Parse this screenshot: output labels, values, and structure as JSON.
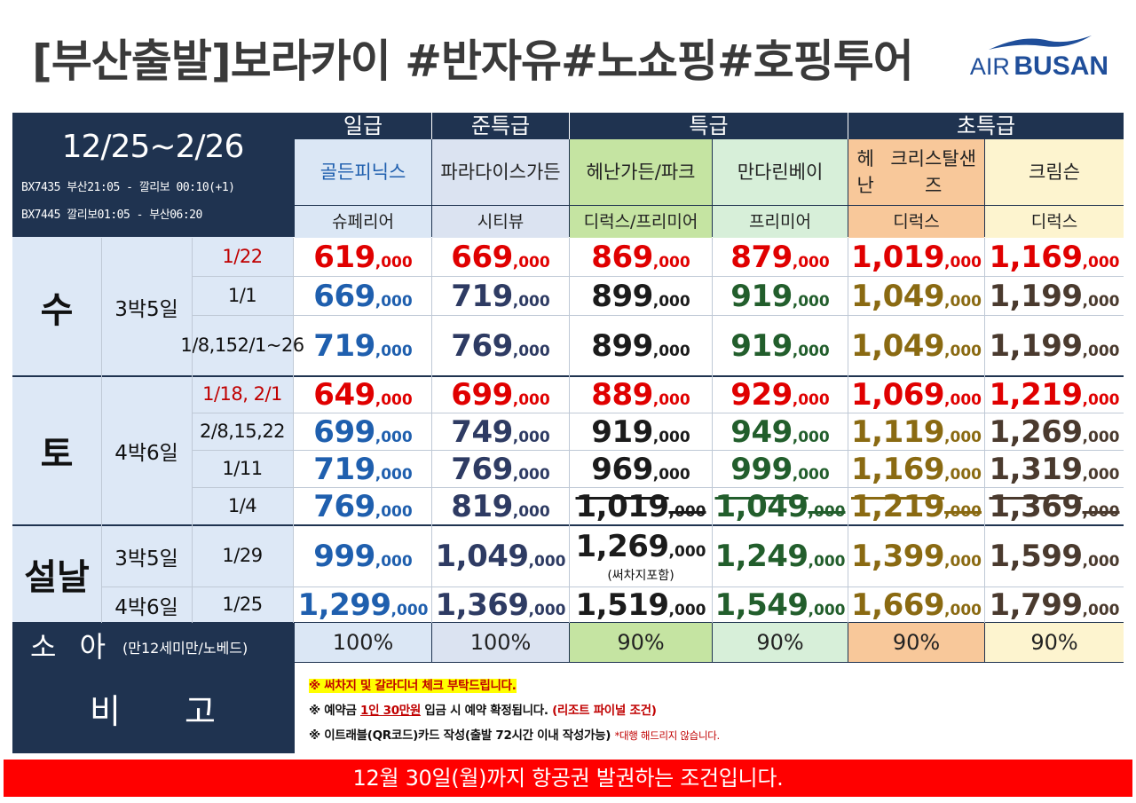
{
  "title": "[부산출발]보라카이  #반자유#노쇼핑#호핑투어",
  "logo": {
    "air": "AIR",
    "busan": "BUSAN",
    "brand_color": "#1f4e9a"
  },
  "period": {
    "range": "12/25~2/26",
    "flights": [
      "BX7435 부산21:05 - 깔리보 00:10(+1)",
      "BX7445 깔리보01:05 - 부산06:20"
    ]
  },
  "grades": [
    "일급",
    "준특급",
    "특급",
    "초특급"
  ],
  "hotels": [
    {
      "name": [
        "골든피닉스"
      ],
      "room": "슈페리어",
      "bg": "#dbe7f5",
      "text": "#1f5fae"
    },
    {
      "name": [
        "파라다이스",
        "가든"
      ],
      "room": "시티뷰",
      "bg": "#dbe3f1",
      "text": "#222222"
    },
    {
      "name": [
        "헤난",
        "가든/파크"
      ],
      "room": "디럭스/프리미어",
      "bg": "#c5e4a2",
      "text": "#222222"
    },
    {
      "name": [
        "만다린베이"
      ],
      "room": "프리미어",
      "bg": "#d7efd9",
      "text": "#222222"
    },
    {
      "name": [
        "헤난",
        "크리스탈샌즈"
      ],
      "room": "디럭스",
      "bg": "#f8c89a",
      "text": "#222222"
    },
    {
      "name": [
        "크림슨"
      ],
      "room": "디럭스",
      "bg": "#fdf4cf",
      "text": "#222222"
    }
  ],
  "price_unit": ",000",
  "price_colors": [
    "#1f5fae",
    "#2e3b63",
    "#1b1b1b",
    "#225e2c",
    "#8a6a12",
    "#4a3a2e"
  ],
  "highlight_color": "#e00000",
  "groups": [
    {
      "day": "수",
      "nights": "3박5일",
      "rows": [
        {
          "date": [
            "1/22"
          ],
          "red": true,
          "prices": [
            "619",
            "669",
            "869",
            "879",
            "1,019",
            "1,169"
          ]
        },
        {
          "date": [
            "1/1"
          ],
          "red": false,
          "prices": [
            "669",
            "719",
            "899",
            "919",
            "1,049",
            "1,199"
          ]
        },
        {
          "date": [
            "1/8,15",
            "2/1~26"
          ],
          "red": false,
          "prices": [
            "719",
            "769",
            "899",
            "919",
            "1,049",
            "1,199"
          ]
        }
      ]
    },
    {
      "day": "토",
      "nights": "4박6일",
      "rows": [
        {
          "date": [
            "1/18, 2/1"
          ],
          "red": true,
          "prices": [
            "649",
            "699",
            "889",
            "929",
            "1,069",
            "1,219"
          ]
        },
        {
          "date": [
            "2/8,15,22"
          ],
          "red": false,
          "prices": [
            "699",
            "749",
            "919",
            "949",
            "1,119",
            "1,269"
          ]
        },
        {
          "date": [
            "1/11"
          ],
          "red": false,
          "prices": [
            "719",
            "769",
            "969",
            "999",
            "1,169",
            "1,319"
          ]
        },
        {
          "date": [
            "1/4"
          ],
          "red": false,
          "prices": [
            "769",
            "819",
            "1,019",
            "1,049",
            "1,219",
            "1,369"
          ],
          "struck_from": 2
        }
      ]
    },
    {
      "day": "설날",
      "rows": [
        {
          "nights": "3박5일",
          "date": [
            "1/29"
          ],
          "red": false,
          "prices": [
            "999",
            "1,049",
            "1,269",
            "1,249",
            "1,399",
            "1,599"
          ],
          "note_col": 2,
          "note": "(써차지포함)"
        },
        {
          "nights": "4박6일",
          "date": [
            "1/25"
          ],
          "red": false,
          "prices": [
            "1,299",
            "1,369",
            "1,519",
            "1,549",
            "1,669",
            "1,799"
          ]
        }
      ]
    }
  ],
  "child": {
    "label": "소 아",
    "sub": "(만12세미만/노베드)",
    "values": [
      "100%",
      "100%",
      "90%",
      "90%",
      "90%",
      "90%"
    ]
  },
  "remarks": {
    "label": "비 고",
    "note1": "※ 써차지 및 갈라디너 체크 부탁드립니다.",
    "note2_pre": "※ 예약금 ",
    "note2_amt": "1인 30만원",
    "note2_mid": " 입금 시 예약 확정됩니다. ",
    "note2_cond": "(리조트 파이널 조건)",
    "note3": "※ 이트래블(QR코드)카드 작성(출발 72시간 이내 작성가능) ",
    "note3_small": "*대행 해드리지 않습니다."
  },
  "footer": "12월 30일(월)까지 항공권 발권하는 조건입니다."
}
